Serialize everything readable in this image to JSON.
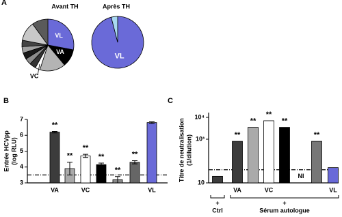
{
  "chart_data": [
    {
      "type": "pie",
      "panel": "A",
      "title": "Avant TH",
      "categories": [
        "VL",
        "VA",
        null,
        "VC",
        null,
        null,
        null,
        null,
        null,
        null,
        null
      ],
      "values": [
        28,
        11,
        16,
        3,
        4,
        4,
        4,
        4,
        4,
        12,
        10
      ],
      "colors": [
        "#6a6ad8",
        "#000000",
        "#b4b4b4",
        "#ffffff",
        "#333333",
        "#8c8c8c",
        "#1a1a1a",
        "#a0a0a0",
        "#444444",
        "#c8c8c8",
        "#5a5a5a"
      ]
    },
    {
      "type": "pie",
      "title": "Après TH",
      "categories": [
        "VL",
        null
      ],
      "values": [
        96,
        4
      ],
      "colors": [
        "#6a6ad8",
        "#a8d8f0"
      ]
    },
    {
      "type": "bar",
      "panel": "B",
      "ylabel": [
        "Entrée HCVpp",
        "(log RLU)"
      ],
      "categories": [
        "VA",
        null,
        "VC",
        null,
        null,
        null,
        "VL"
      ],
      "values": [
        6.2,
        3.9,
        4.7,
        4.15,
        3.2,
        4.3,
        6.8
      ],
      "errors": [
        0.05,
        0.4,
        0.1,
        0.1,
        0.2,
        0.1,
        0.05
      ],
      "annotations": [
        "**",
        "**",
        "**",
        "**",
        "**",
        "**",
        null
      ],
      "colors": [
        "#3c3c3c",
        "#aaaaaa",
        "#ffffff",
        "#000000",
        "#8a8a8a",
        "#666666",
        "#6a6ad8"
      ],
      "threshold": 3.5,
      "ylim": [
        3,
        7
      ],
      "yticks": [
        3,
        4,
        5,
        6,
        7
      ]
    },
    {
      "type": "bar",
      "panel": "C",
      "ylabel": [
        "Titre de neutralisation",
        "(1/dilution)"
      ],
      "log_scale": true,
      "categories": [
        null,
        "VA",
        null,
        "VC",
        null,
        null,
        null,
        "VL"
      ],
      "values": [
        20,
        800,
        3500,
        7000,
        3500,
        null,
        800,
        50
      ],
      "annotations": [
        null,
        "**",
        "**",
        "**",
        "**",
        "NI",
        "**",
        null
      ],
      "colors": [
        "#3c3c3c",
        "#3c3c3c",
        "#aaaaaa",
        "#ffffff",
        "#000000",
        "#000000",
        "#777777",
        "#6a6ad8"
      ],
      "threshold": 40,
      "groups": [
        {
          "sign": "+",
          "label": "Ctrl"
        },
        {
          "sign": "+",
          "label": "Sérum autologue"
        }
      ],
      "ylim": [
        10,
        10000
      ],
      "yticks": [
        10,
        {
          "value": 1000,
          "label": "10³"
        },
        {
          "value": 10000,
          "label": "10⁴"
        }
      ]
    }
  ]
}
